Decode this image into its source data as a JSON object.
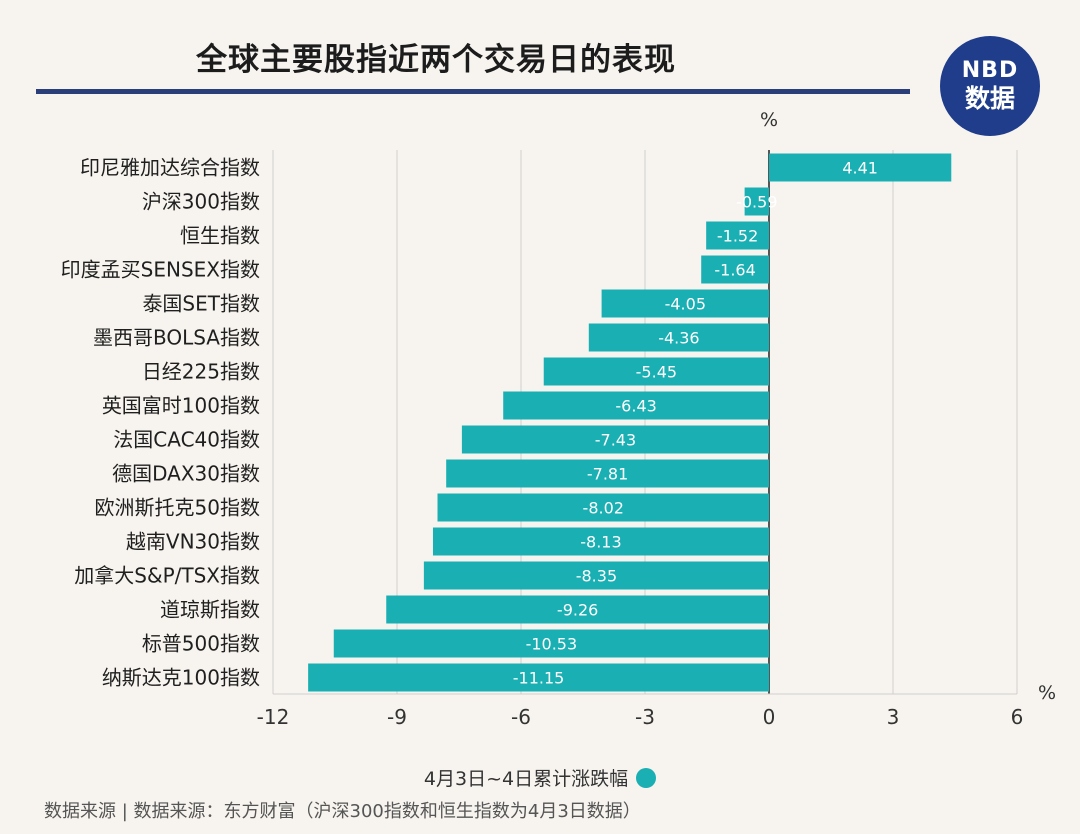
{
  "header": {
    "title": "全球主要股指近两个交易日的表现",
    "logo_top": "NBD",
    "logo_bottom": "数据"
  },
  "footer": {
    "source": "数据来源 | 数据来源：东方财富（沪深300指数和恒生指数为4月3日数据）"
  },
  "colors": {
    "bar": "#1aafb3",
    "title_rule": "#2a3f7a",
    "logo_bg": "#1f3d8a",
    "logo_accent": "#ff3b3b"
  },
  "chart_data": {
    "type": "bar",
    "orientation": "horizontal",
    "title": "全球主要股指近两个交易日的表现",
    "categories": [
      "印尼雅加达综合指数",
      "沪深300指数",
      "恒生指数",
      "印度孟买SENSEX指数",
      "泰国SET指数",
      "墨西哥BOLSA指数",
      "日经225指数",
      "英国富时100指数",
      "法国CAC40指数",
      "德国DAX30指数",
      "欧洲斯托克50指数",
      "越南VN30指数",
      "加拿大S&P/TSX指数",
      "道琼斯指数",
      "标普500指数",
      "纳斯达克100指数"
    ],
    "series": [
      {
        "name": "4月3日~4日累计涨跌幅",
        "values": [
          4.41,
          -0.59,
          -1.52,
          -1.64,
          -4.05,
          -4.36,
          -5.45,
          -6.43,
          -7.43,
          -7.81,
          -8.02,
          -8.13,
          -8.35,
          -9.26,
          -10.53,
          -11.15
        ]
      }
    ],
    "value_labels": [
      "4.41",
      "-0.59",
      "-1.52",
      "-1.64",
      "-4.05",
      "-4.36",
      "-5.45",
      "-6.43",
      "-7.43",
      "-7.81",
      "-8.02",
      "-8.13",
      "-8.35",
      "-9.26",
      "-10.53",
      "-11.15"
    ],
    "xlim": [
      -12,
      6
    ],
    "xticks": [
      -12,
      -9,
      -6,
      -3,
      0,
      3,
      6
    ],
    "xtick_labels": [
      "-12",
      "-9",
      "-6",
      "-3",
      "0",
      "3",
      "6"
    ],
    "unit_top": "%",
    "unit_right": "%",
    "grid": "vertical",
    "legend_position": "bottom-center"
  }
}
